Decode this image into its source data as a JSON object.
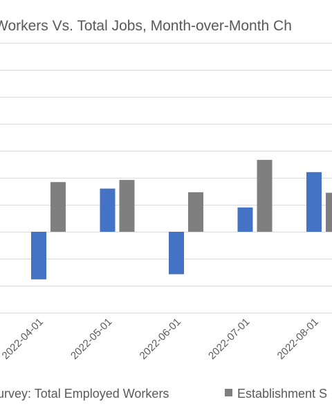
{
  "chart_data": {
    "type": "bar",
    "title": "Workers Vs. Total Jobs, Month-over-Month Ch",
    "categories": [
      "2022-04-01",
      "2022-05-01",
      "2022-06-01",
      "2022-07-01",
      "2022-08-01"
    ],
    "series": [
      {
        "name": "urvey: Total Employed Workers",
        "color": "#4472c4",
        "values": [
          -353,
          320,
          -315,
          180,
          442
        ]
      },
      {
        "name": "Establishment S",
        "color": "#7f7f7f",
        "values": [
          368,
          384,
          293,
          533,
          289
        ]
      }
    ],
    "ylim": [
      -600,
      1400
    ],
    "grid": true,
    "legend_position": "bottom"
  }
}
